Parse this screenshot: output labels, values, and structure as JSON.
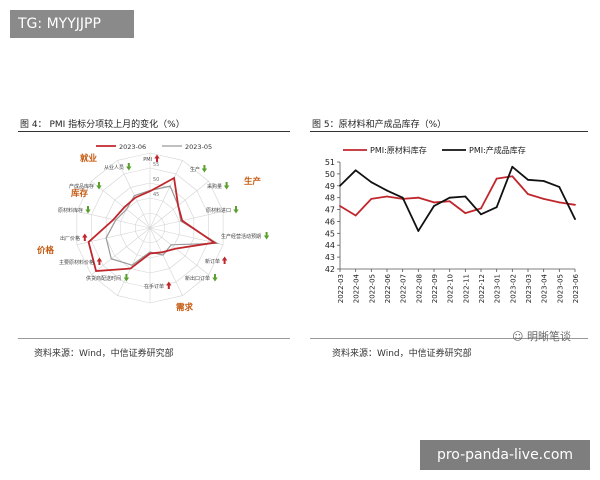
{
  "badges": {
    "top_left": "TG: MYYJJPP",
    "bottom_right": "pro-panda-live.com"
  },
  "watermark": "明晰笔谈",
  "left_panel": {
    "title": "图 4： PMI 指标分项较上月的变化（%）",
    "source": "资料来源：Wind，中信证券研究部"
  },
  "right_panel": {
    "title": "图 5：原材料和产成品库存（%）",
    "source": "资料来源：Wind，中信证券研究部"
  },
  "colors": {
    "red": "#c0272d",
    "black": "#111111",
    "gray": "#9a9a9a",
    "green": "#5aa02c",
    "orange": "#c55a11"
  },
  "chart_data": [
    {
      "type": "radar",
      "series": [
        {
          "name": "2023-06"
        },
        {
          "name": "2023-05"
        }
      ],
      "axes": [
        "PMI",
        "生产",
        "采购量",
        "原材料进口",
        "生产经营活动预期",
        "新订单",
        "新出口订单",
        "在手订单",
        "供货商配送时间",
        "主要原材料价格",
        "出厂价格",
        "原材料库存",
        "产成品库存",
        "从业人员"
      ],
      "ring_labels": [
        "55",
        "50",
        "45"
      ],
      "changes": [
        "up",
        "down",
        "down",
        "down",
        "down",
        "up",
        "down",
        "up",
        "down",
        "up",
        "up",
        "down",
        "down",
        "down"
      ],
      "groups": [
        "就业",
        "生产",
        "库存",
        "价格",
        "需求"
      ]
    },
    {
      "type": "line",
      "x": [
        "2022-03",
        "2022-04",
        "2022-05",
        "2022-06",
        "2022-07",
        "2022-08",
        "2022-09",
        "2022-10",
        "2022-11",
        "2022-12",
        "2023-01",
        "2023-02",
        "2023-03",
        "2023-04",
        "2023-05",
        "2023-06"
      ],
      "ylim": [
        42,
        51
      ],
      "yticks": [
        "51",
        "50",
        "49",
        "48",
        "47",
        "46",
        "45",
        "44",
        "43",
        "42"
      ],
      "series": [
        {
          "name": "PMI:原材料库存",
          "values": [
            47.3,
            46.5,
            47.9,
            48.1,
            47.9,
            48.0,
            47.6,
            47.7,
            46.7,
            47.1,
            49.6,
            49.8,
            48.3,
            47.9,
            47.6,
            47.4
          ]
        },
        {
          "name": "PMI:产成品库存",
          "values": [
            49.0,
            50.3,
            49.3,
            48.6,
            48.0,
            45.2,
            47.3,
            48.0,
            48.1,
            46.6,
            47.2,
            50.6,
            49.5,
            49.4,
            48.9,
            46.2
          ]
        }
      ]
    }
  ]
}
